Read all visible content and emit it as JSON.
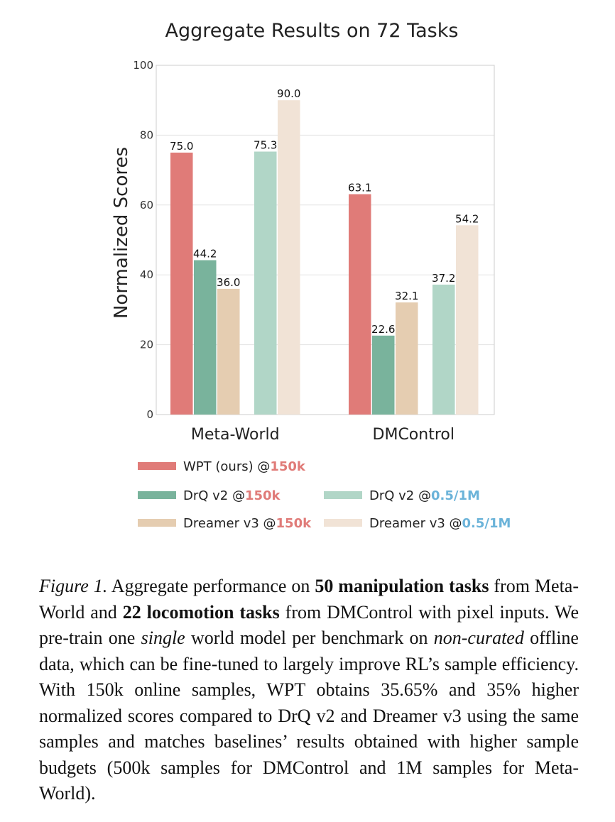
{
  "chart_data": {
    "type": "bar",
    "title": "Aggregate Results on 72 Tasks",
    "ylabel": "Normalized Scores",
    "xlabel": "",
    "ylim": [
      0,
      100
    ],
    "yticks": [
      0,
      20,
      40,
      60,
      80,
      100
    ],
    "grid": true,
    "categories": [
      "Meta-World",
      "DMControl"
    ],
    "series": [
      {
        "name": "WPT (ours) @150k",
        "values": [
          75.0,
          63.1
        ],
        "labels": [
          "75.0",
          "63.1"
        ],
        "color": "#e07b78"
      },
      {
        "name": "DrQ v2 @150k",
        "values": [
          44.2,
          22.6
        ],
        "labels": [
          "44.2",
          "22.6"
        ],
        "color": "#79b39c"
      },
      {
        "name": "Dreamer v3 @150k",
        "values": [
          36.0,
          32.1
        ],
        "labels": [
          "36.0",
          "32.1"
        ],
        "color": "#e5cdb1"
      },
      {
        "name": "DrQ v2 @0.5/1M",
        "values": [
          75.3,
          37.2
        ],
        "labels": [
          "75.3",
          "37.2"
        ],
        "color": "#b1d6c7"
      },
      {
        "name": "Dreamer v3 @0.5/1M",
        "values": [
          90.0,
          54.2
        ],
        "labels": [
          "90.0",
          "54.2"
        ],
        "color": "#f1e3d6"
      }
    ],
    "legend": [
      {
        "base": "WPT (ours) @",
        "budget": "150k",
        "budget_color": "#e07b78",
        "swatch": "#e07b78"
      },
      {
        "base": "DrQ v2 @",
        "budget": "150k",
        "budget_color": "#e07b78",
        "swatch": "#79b39c"
      },
      {
        "base": "Dreamer v3 @",
        "budget": "150k",
        "budget_color": "#e07b78",
        "swatch": "#e5cdb1"
      },
      {
        "base": "DrQ v2 @",
        "budget": "0.5/1M",
        "budget_color": "#6bb3d9",
        "swatch": "#b1d6c7"
      },
      {
        "base": "Dreamer v3 @",
        "budget": "0.5/1M",
        "budget_color": "#6bb3d9",
        "swatch": "#f1e3d6"
      }
    ],
    "legend_placement": "bottom"
  },
  "caption": {
    "label": "Figure 1.",
    "t1": " Aggregate performance on ",
    "b1": "50 manipulation tasks",
    "t2": " from Meta-World and ",
    "b2": "22 locomotion tasks",
    "t3": " from DMControl with pixel inputs. We pre-train one ",
    "i1": "single",
    "t4": " world model per benchmark on ",
    "i2": "non-curated",
    "t5": " offline data, which can be fine-tuned to largely improve RL’s sample efficiency. With 150k online samples, WPT obtains 35.65% and 35% higher normalized scores compared to DrQ v2 and Dreamer v3 using the same samples and matches baselines’ results obtained with higher sample budgets (500k samples for DMControl and 1M samples for Meta-World)."
  }
}
